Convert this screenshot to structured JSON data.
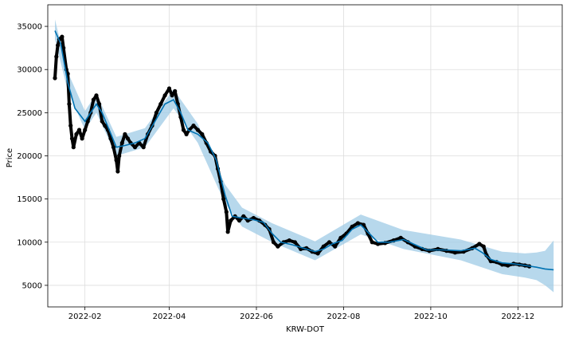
{
  "chart_data": {
    "type": "line",
    "xlabel": "KRW-DOT",
    "ylabel": "Price",
    "x_range": [
      "2022-01-06",
      "2023-01-01"
    ],
    "ylim": [
      2500,
      37500
    ],
    "grid": true,
    "x_ticks": [
      "2022-02",
      "2022-04",
      "2022-06",
      "2022-08",
      "2022-10",
      "2022-12"
    ],
    "y_ticks": [
      5000,
      10000,
      15000,
      20000,
      25000,
      30000,
      35000
    ],
    "colors": {
      "observed": "#000000",
      "forecast": "#0072B2",
      "uncertainty": "#9fcbe6",
      "grid": "#dddddd"
    },
    "series": [
      {
        "role": "observed",
        "style": "points",
        "points": [
          [
            "2022-01-11",
            29000
          ],
          [
            "2022-01-12",
            31500
          ],
          [
            "2022-01-13",
            32800
          ],
          [
            "2022-01-14",
            33500
          ],
          [
            "2022-01-16",
            33800
          ],
          [
            "2022-01-17",
            32500
          ],
          [
            "2022-01-19",
            30000
          ],
          [
            "2022-01-20",
            29500
          ],
          [
            "2022-01-21",
            26000
          ],
          [
            "2022-01-22",
            23500
          ],
          [
            "2022-01-23",
            22000
          ],
          [
            "2022-01-24",
            21000
          ],
          [
            "2022-01-26",
            22500
          ],
          [
            "2022-01-28",
            23000
          ],
          [
            "2022-01-30",
            22000
          ],
          [
            "2022-02-01",
            23000
          ],
          [
            "2022-02-03",
            24000
          ],
          [
            "2022-02-05",
            25000
          ],
          [
            "2022-02-07",
            26500
          ],
          [
            "2022-02-09",
            27000
          ],
          [
            "2022-02-11",
            26000
          ],
          [
            "2022-02-13",
            24000
          ],
          [
            "2022-02-15",
            23500
          ],
          [
            "2022-02-17",
            23000
          ],
          [
            "2022-02-19",
            22000
          ],
          [
            "2022-02-21",
            21000
          ],
          [
            "2022-02-23",
            19500
          ],
          [
            "2022-02-24",
            18200
          ],
          [
            "2022-02-25",
            20000
          ],
          [
            "2022-02-27",
            21500
          ],
          [
            "2022-03-01",
            22500
          ],
          [
            "2022-03-03",
            22000
          ],
          [
            "2022-03-05",
            21500
          ],
          [
            "2022-03-08",
            21000
          ],
          [
            "2022-03-11",
            21500
          ],
          [
            "2022-03-14",
            21000
          ],
          [
            "2022-03-17",
            22500
          ],
          [
            "2022-03-20",
            23500
          ],
          [
            "2022-03-23",
            25000
          ],
          [
            "2022-03-26",
            26000
          ],
          [
            "2022-03-29",
            27000
          ],
          [
            "2022-04-01",
            27800
          ],
          [
            "2022-04-03",
            27000
          ],
          [
            "2022-04-05",
            27500
          ],
          [
            "2022-04-07",
            26000
          ],
          [
            "2022-04-09",
            24500
          ],
          [
            "2022-04-11",
            23000
          ],
          [
            "2022-04-13",
            22500
          ],
          [
            "2022-04-15",
            23000
          ],
          [
            "2022-04-18",
            23500
          ],
          [
            "2022-04-21",
            23000
          ],
          [
            "2022-04-24",
            22500
          ],
          [
            "2022-04-27",
            21500
          ],
          [
            "2022-04-30",
            20500
          ],
          [
            "2022-05-03",
            20000
          ],
          [
            "2022-05-05",
            18500
          ],
          [
            "2022-05-07",
            17000
          ],
          [
            "2022-05-09",
            15000
          ],
          [
            "2022-05-11",
            13500
          ],
          [
            "2022-05-12",
            11200
          ],
          [
            "2022-05-14",
            12500
          ],
          [
            "2022-05-17",
            13000
          ],
          [
            "2022-05-20",
            12500
          ],
          [
            "2022-05-23",
            13000
          ],
          [
            "2022-05-26",
            12500
          ],
          [
            "2022-05-30",
            12800
          ],
          [
            "2022-06-03",
            12500
          ],
          [
            "2022-06-07",
            12000
          ],
          [
            "2022-06-10",
            11500
          ],
          [
            "2022-06-13",
            10000
          ],
          [
            "2022-06-16",
            9500
          ],
          [
            "2022-06-20",
            10000
          ],
          [
            "2022-06-24",
            10200
          ],
          [
            "2022-06-28",
            10000
          ],
          [
            "2022-07-02",
            9200
          ],
          [
            "2022-07-06",
            9300
          ],
          [
            "2022-07-10",
            8900
          ],
          [
            "2022-07-14",
            8700
          ],
          [
            "2022-07-18",
            9500
          ],
          [
            "2022-07-22",
            10000
          ],
          [
            "2022-07-26",
            9500
          ],
          [
            "2022-07-30",
            10500
          ],
          [
            "2022-08-03",
            11000
          ],
          [
            "2022-08-07",
            11800
          ],
          [
            "2022-08-11",
            12200
          ],
          [
            "2022-08-15",
            12000
          ],
          [
            "2022-08-18",
            11000
          ],
          [
            "2022-08-21",
            10000
          ],
          [
            "2022-08-25",
            9800
          ],
          [
            "2022-08-30",
            9900
          ],
          [
            "2022-09-05",
            10200
          ],
          [
            "2022-09-10",
            10500
          ],
          [
            "2022-09-15",
            10000
          ],
          [
            "2022-09-20",
            9500
          ],
          [
            "2022-09-25",
            9200
          ],
          [
            "2022-09-30",
            9000
          ],
          [
            "2022-10-06",
            9200
          ],
          [
            "2022-10-12",
            9000
          ],
          [
            "2022-10-18",
            8800
          ],
          [
            "2022-10-24",
            8900
          ],
          [
            "2022-10-30",
            9300
          ],
          [
            "2022-11-04",
            9800
          ],
          [
            "2022-11-07",
            9500
          ],
          [
            "2022-11-09",
            8500
          ],
          [
            "2022-11-12",
            7800
          ],
          [
            "2022-11-16",
            7700
          ],
          [
            "2022-11-20",
            7400
          ],
          [
            "2022-11-24",
            7300
          ],
          [
            "2022-11-28",
            7500
          ],
          [
            "2022-12-02",
            7400
          ],
          [
            "2022-12-06",
            7300
          ],
          [
            "2022-12-09",
            7200
          ]
        ]
      },
      {
        "role": "forecast",
        "style": "line",
        "points": [
          [
            "2022-01-11",
            34500
          ],
          [
            "2022-01-15",
            33000
          ],
          [
            "2022-01-20",
            28500
          ],
          [
            "2022-01-25",
            25500
          ],
          [
            "2022-02-01",
            24000
          ],
          [
            "2022-02-05",
            25000
          ],
          [
            "2022-02-09",
            26000
          ],
          [
            "2022-02-13",
            25000
          ],
          [
            "2022-02-18",
            23000
          ],
          [
            "2022-02-23",
            21000
          ],
          [
            "2022-03-01",
            21200
          ],
          [
            "2022-03-08",
            21500
          ],
          [
            "2022-03-15",
            22000
          ],
          [
            "2022-03-22",
            24000
          ],
          [
            "2022-03-29",
            26000
          ],
          [
            "2022-04-04",
            26500
          ],
          [
            "2022-04-09",
            25000
          ],
          [
            "2022-04-14",
            23000
          ],
          [
            "2022-04-21",
            22500
          ],
          [
            "2022-04-28",
            21500
          ],
          [
            "2022-05-04",
            19500
          ],
          [
            "2022-05-10",
            15500
          ],
          [
            "2022-05-15",
            13000
          ],
          [
            "2022-05-22",
            12800
          ],
          [
            "2022-05-30",
            12600
          ],
          [
            "2022-06-06",
            12300
          ],
          [
            "2022-06-12",
            11000
          ],
          [
            "2022-06-18",
            10000
          ],
          [
            "2022-06-26",
            9700
          ],
          [
            "2022-07-04",
            9300
          ],
          [
            "2022-07-12",
            8900
          ],
          [
            "2022-07-18",
            9200
          ],
          [
            "2022-07-24",
            9800
          ],
          [
            "2022-07-31",
            10200
          ],
          [
            "2022-08-07",
            11500
          ],
          [
            "2022-08-13",
            12000
          ],
          [
            "2022-08-19",
            11000
          ],
          [
            "2022-08-25",
            10000
          ],
          [
            "2022-09-02",
            10000
          ],
          [
            "2022-09-12",
            10300
          ],
          [
            "2022-09-20",
            9700
          ],
          [
            "2022-09-28",
            9100
          ],
          [
            "2022-10-10",
            9100
          ],
          [
            "2022-10-22",
            9000
          ],
          [
            "2022-11-01",
            9300
          ],
          [
            "2022-11-06",
            8800
          ],
          [
            "2022-11-12",
            8000
          ],
          [
            "2022-11-20",
            7600
          ],
          [
            "2022-11-28",
            7500
          ],
          [
            "2022-12-06",
            7300
          ],
          [
            "2022-12-14",
            7100
          ],
          [
            "2022-12-20",
            6900
          ],
          [
            "2022-12-26",
            6800
          ]
        ]
      },
      {
        "role": "uncertainty",
        "style": "band",
        "points": [
          [
            "2022-01-11",
            33500,
            35800
          ],
          [
            "2022-01-20",
            27500,
            29700
          ],
          [
            "2022-02-01",
            23000,
            25200
          ],
          [
            "2022-02-09",
            25000,
            27200
          ],
          [
            "2022-02-23",
            20000,
            22200
          ],
          [
            "2022-03-15",
            21000,
            23200
          ],
          [
            "2022-04-04",
            25500,
            27700
          ],
          [
            "2022-04-21",
            21500,
            23700
          ],
          [
            "2022-05-10",
            14500,
            16700
          ],
          [
            "2022-05-22",
            11800,
            14000
          ],
          [
            "2022-06-12",
            10000,
            12200
          ],
          [
            "2022-07-12",
            7900,
            10100
          ],
          [
            "2022-08-13",
            10900,
            13200
          ],
          [
            "2022-09-12",
            9200,
            11400
          ],
          [
            "2022-10-22",
            7900,
            10300
          ],
          [
            "2022-11-20",
            6300,
            8900
          ],
          [
            "2022-12-06",
            5900,
            8700
          ],
          [
            "2022-12-14",
            5600,
            8800
          ],
          [
            "2022-12-20",
            5000,
            9000
          ],
          [
            "2022-12-26",
            4200,
            10200
          ]
        ]
      }
    ]
  }
}
